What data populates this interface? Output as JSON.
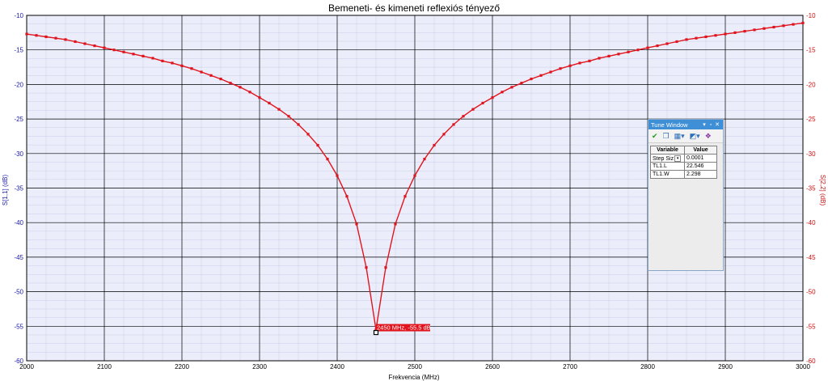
{
  "chart_data": {
    "type": "line",
    "title": "Bemeneti- és kimeneti reflexiós tényező",
    "xlabel": "Frekvencia (MHz)",
    "ylabel_left": "S[1,1] (dB)",
    "ylabel_right": "S[2,2] (dB)",
    "xlim": [
      2000,
      3000
    ],
    "ylim": [
      -60,
      -10
    ],
    "x_ticks": [
      "2000",
      "2100",
      "2200",
      "2300",
      "2400",
      "2500",
      "2600",
      "2700",
      "2800",
      "2900",
      "3000"
    ],
    "y_ticks": [
      "-10",
      "-15",
      "-20",
      "-25",
      "-30",
      "-35",
      "-40",
      "-45",
      "-50",
      "-55",
      "-60"
    ],
    "grid": true,
    "series": [
      {
        "color": "#e1141e",
        "x": [
          2000,
          2012.5,
          2025,
          2037.5,
          2050,
          2062.5,
          2075,
          2087.5,
          2100,
          2112.5,
          2125,
          2137.5,
          2150,
          2162.5,
          2175,
          2187.5,
          2200,
          2212.5,
          2225,
          2237.5,
          2250,
          2262.5,
          2275,
          2287.5,
          2300,
          2312.5,
          2325,
          2337.5,
          2350,
          2362.5,
          2375,
          2387.5,
          2400,
          2412.5,
          2425,
          2437.5,
          2450,
          2462.5,
          2475,
          2487.5,
          2500,
          2512.5,
          2525,
          2537.5,
          2550,
          2562.5,
          2575,
          2587.5,
          2600,
          2612.5,
          2625,
          2637.5,
          2650,
          2662.5,
          2675,
          2687.5,
          2700,
          2712.5,
          2725,
          2737.5,
          2750,
          2762.5,
          2775,
          2787.5,
          2800,
          2812.5,
          2825,
          2837.5,
          2850,
          2862.5,
          2875,
          2887.5,
          2900,
          2912.5,
          2925,
          2937.5,
          2950,
          2962.5,
          2975,
          2987.5,
          3000
        ],
        "y": [
          -12.7,
          -12.9,
          -13.1,
          -13.3,
          -13.5,
          -13.8,
          -14.1,
          -14.4,
          -14.7,
          -15.0,
          -15.3,
          -15.6,
          -15.9,
          -16.2,
          -16.6,
          -16.9,
          -17.3,
          -17.7,
          -18.2,
          -18.7,
          -19.2,
          -19.8,
          -20.4,
          -21.1,
          -21.9,
          -22.7,
          -23.6,
          -24.6,
          -25.8,
          -27.2,
          -28.8,
          -30.8,
          -33.2,
          -36.2,
          -40.2,
          -46.5,
          -55.5,
          -46.5,
          -40.2,
          -36.2,
          -33.2,
          -30.8,
          -28.8,
          -27.2,
          -25.8,
          -24.6,
          -23.6,
          -22.7,
          -21.9,
          -21.1,
          -20.4,
          -19.8,
          -19.2,
          -18.7,
          -18.2,
          -17.7,
          -17.3,
          -16.9,
          -16.6,
          -16.2,
          -15.9,
          -15.6,
          -15.3,
          -15.0,
          -14.7,
          -14.4,
          -14.1,
          -13.8,
          -13.5,
          -13.3,
          -13.1,
          -12.9,
          -12.7,
          -12.5,
          -12.3,
          -12.1,
          -11.9,
          -11.7,
          -11.5,
          -11.3,
          -11.1
        ]
      }
    ],
    "marker": {
      "x": 2450,
      "y": -55.5,
      "label": "2450 MHz, -55.5 dB"
    },
    "colors": {
      "left_axis": "#1a1aa8",
      "right_axis": "#cc1010",
      "plot_bg": "#ebeefa",
      "grid": "#000000",
      "minor_grid": "#c9cde6"
    }
  },
  "tune_window": {
    "title": "Tune Window",
    "title_icons": [
      "pin-icon",
      "float-icon",
      "close-icon"
    ],
    "toolbar_icons": [
      "check-icon",
      "copy-icon",
      "grid-icon",
      "graph-icon",
      "palette-icon"
    ],
    "columns": [
      "Variable",
      "Value"
    ],
    "rows": [
      {
        "variable": "Step Siz",
        "value": "0.0001",
        "has_dropdown": true
      },
      {
        "variable": "TL1.L",
        "value": "22.546",
        "has_dropdown": false
      },
      {
        "variable": "TL1.W",
        "value": "2.298",
        "has_dropdown": false
      }
    ]
  }
}
